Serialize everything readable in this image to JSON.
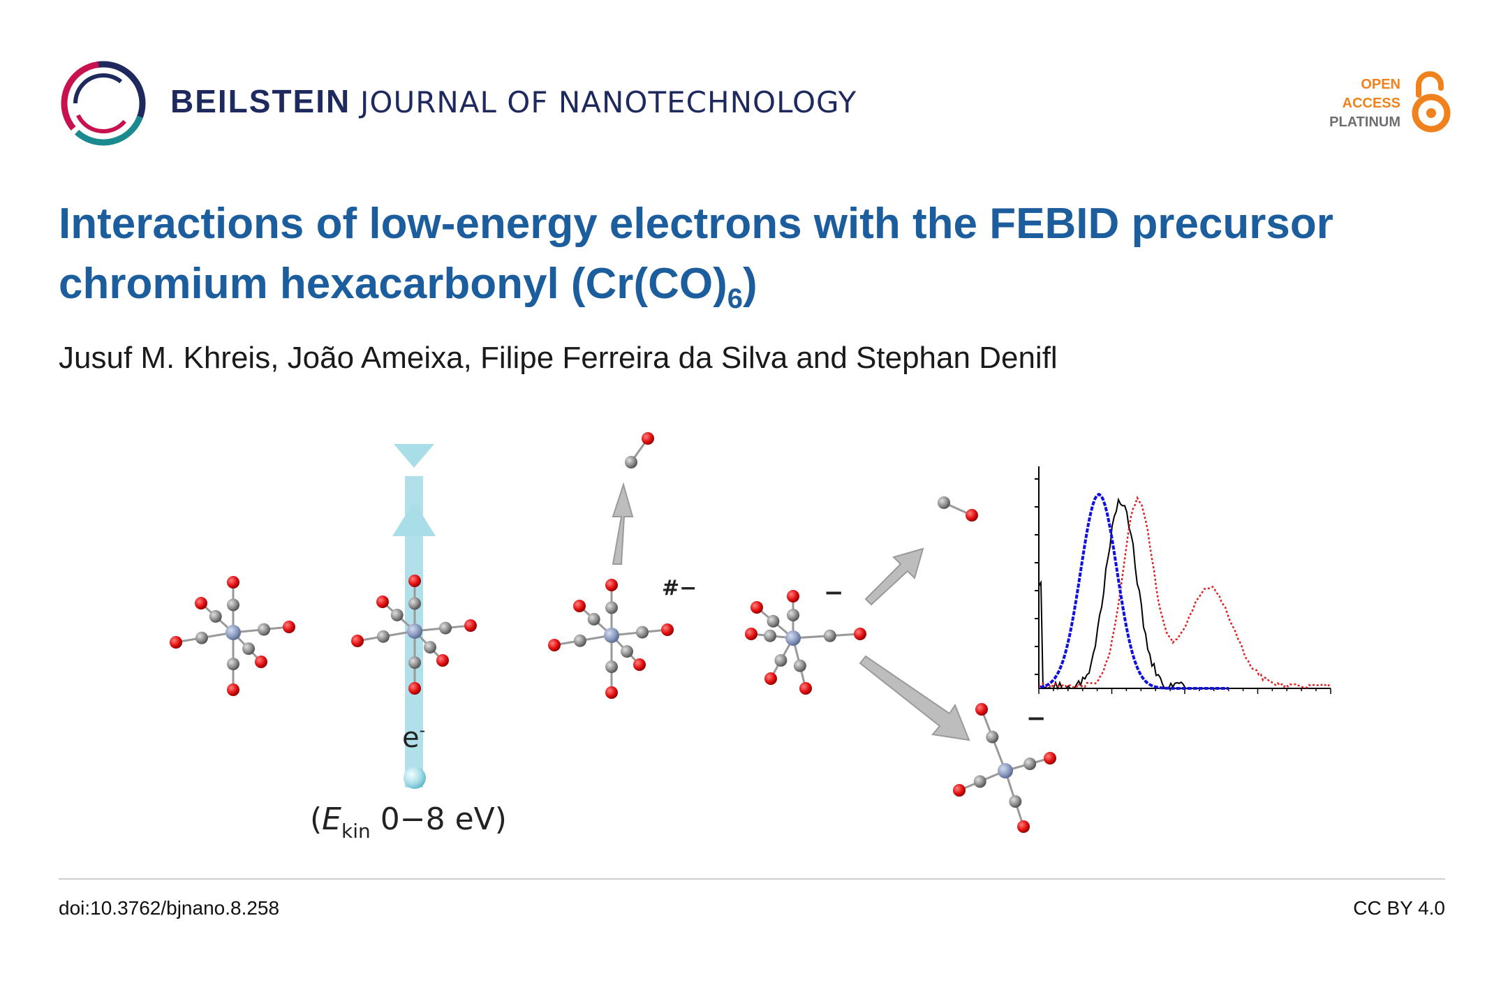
{
  "journal": {
    "name_bold": "BEILSTEIN",
    "name_rest": "JOURNAL OF NANOTECHNOLOGY"
  },
  "open_access": {
    "line1": "OPEN",
    "line2": "ACCESS",
    "line3": "PLATINUM",
    "colors": {
      "orange": "#f0821e",
      "grey": "#6d6e71"
    }
  },
  "article": {
    "title_main": "Interactions of low-energy electrons with the FEBID precursor chromium hexacarbonyl (Cr(CO)",
    "title_sub": "6",
    "title_end": ")",
    "authors": "Jusuf M. Khreis, João Ameixa, Filipe Ferreira da Silva and Stephan Denifl"
  },
  "figure": {
    "electron_label": "e",
    "electron_charge": "-",
    "energy_open": "(",
    "energy_symbol": "E",
    "energy_subscript": "kin",
    "energy_range": " 0−8 eV)",
    "transient_label": "#−",
    "anion_label_1": "−",
    "anion_label_2": "−",
    "colors": {
      "oxygen": "#e31010",
      "carbon": "#8c8c8c",
      "chromium": "#8a9bbf",
      "electron_beam": "#a9dde8",
      "arrow": "#bdbdbd",
      "curve_blue": "#1010e0",
      "curve_black": "#000000",
      "curve_red": "#e02020"
    }
  },
  "footer": {
    "doi": "doi:10.3762/bjnano.8.258",
    "license": "CC BY 4.0"
  },
  "colors": {
    "title": "#1c5d9e",
    "journal": "#1e2a5e"
  }
}
